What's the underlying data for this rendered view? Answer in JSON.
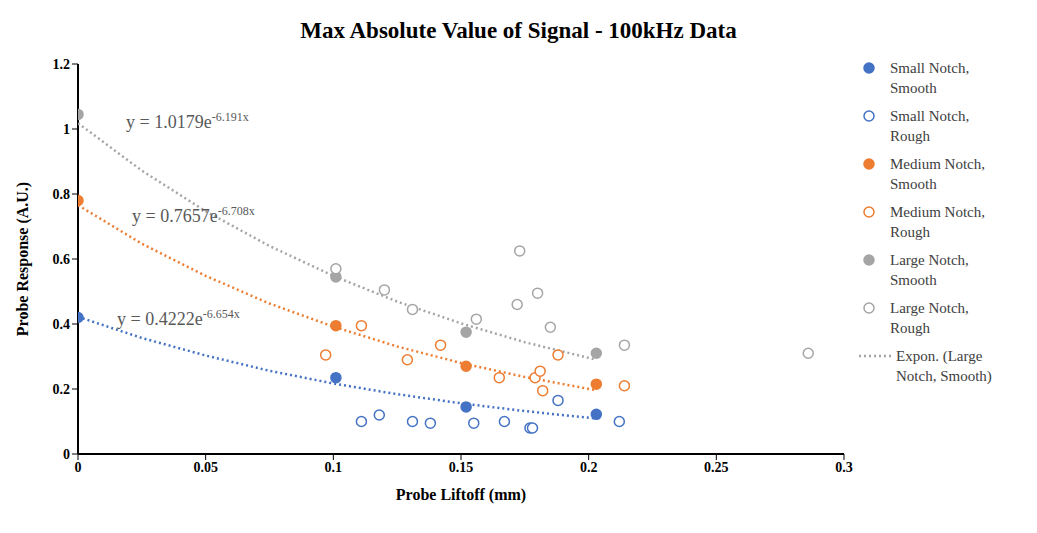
{
  "chart_data": {
    "type": "scatter",
    "title": "Max Absolute Value of Signal - 100kHz Data",
    "x_label": "Probe Liftoff (mm)",
    "y_label": "Probe Response (A.U.)",
    "xlim": [
      0,
      0.3
    ],
    "xticks": [
      0,
      0.05,
      0.1,
      0.15,
      0.2,
      0.25,
      0.3
    ],
    "ylim": [
      0,
      1.2
    ],
    "yticks": [
      0,
      0.2,
      0.4,
      0.6,
      0.8,
      1,
      1.2
    ],
    "grid": false,
    "legend": "right",
    "series": [
      {
        "name": "Small Notch, Smooth",
        "color": "#4472c4",
        "marker": "circle",
        "x": [
          0,
          0.101,
          0.152,
          0.203
        ],
        "values": [
          0.42,
          0.235,
          0.145,
          0.122
        ]
      },
      {
        "name": "Small Notch, Rough",
        "color": "#4472c4",
        "marker": "open_circle",
        "x": [
          0.111,
          0.118,
          0.131,
          0.138,
          0.155,
          0.167,
          0.177,
          0.178,
          0.188,
          0.212
        ],
        "values": [
          0.1,
          0.12,
          0.1,
          0.095,
          0.095,
          0.1,
          0.08,
          0.08,
          0.165,
          0.1
        ]
      },
      {
        "name": "Medium Notch, Smooth",
        "color": "#ed7d31",
        "marker": "circle",
        "x": [
          0,
          0.101,
          0.152,
          0.203
        ],
        "values": [
          0.78,
          0.395,
          0.27,
          0.215
        ]
      },
      {
        "name": "Medium Notch, Rough",
        "color": "#ed7d31",
        "marker": "open_circle",
        "x": [
          0.097,
          0.111,
          0.129,
          0.142,
          0.165,
          0.179,
          0.181,
          0.182,
          0.188,
          0.214
        ],
        "values": [
          0.305,
          0.395,
          0.29,
          0.335,
          0.235,
          0.235,
          0.255,
          0.195,
          0.305,
          0.21
        ]
      },
      {
        "name": "Large Notch, Smooth",
        "color": "#a5a5a5",
        "marker": "circle",
        "x": [
          0,
          0.101,
          0.152,
          0.203
        ],
        "values": [
          1.045,
          0.545,
          0.375,
          0.31
        ]
      },
      {
        "name": "Large Notch, Rough",
        "color": "#a5a5a5",
        "marker": "open_circle",
        "x": [
          0.101,
          0.12,
          0.131,
          0.156,
          0.172,
          0.173,
          0.18,
          0.185,
          0.214,
          0.286
        ],
        "values": [
          0.57,
          0.505,
          0.445,
          0.415,
          0.46,
          0.625,
          0.495,
          0.39,
          0.335,
          0.31
        ]
      }
    ],
    "trendlines": [
      {
        "name": "Expon. (Large Notch, Smooth)",
        "color": "#a5a5a5",
        "line_style": "dotted",
        "equation": "y = 1.0179e-6.191x",
        "x": [
          0,
          0.025,
          0.05,
          0.075,
          0.1,
          0.125,
          0.15,
          0.175,
          0.203
        ],
        "values": [
          1.0179,
          0.872,
          0.747,
          0.64,
          0.548,
          0.469,
          0.402,
          0.344,
          0.29
        ]
      },
      {
        "color": "#ed7d31",
        "line_style": "dotted",
        "equation": "y = 0.7657e-6.708x",
        "x": [
          0,
          0.025,
          0.05,
          0.075,
          0.1,
          0.125,
          0.15,
          0.175,
          0.203
        ],
        "values": [
          0.7657,
          0.647,
          0.548,
          0.463,
          0.392,
          0.331,
          0.28,
          0.237,
          0.196
        ]
      },
      {
        "color": "#4472c4",
        "line_style": "dotted",
        "equation": "y = 0.4222e-6.654x",
        "x": [
          0,
          0.025,
          0.05,
          0.075,
          0.1,
          0.125,
          0.15,
          0.175,
          0.203
        ],
        "values": [
          0.4222,
          0.357,
          0.303,
          0.256,
          0.217,
          0.184,
          0.156,
          0.132,
          0.109
        ]
      }
    ]
  }
}
